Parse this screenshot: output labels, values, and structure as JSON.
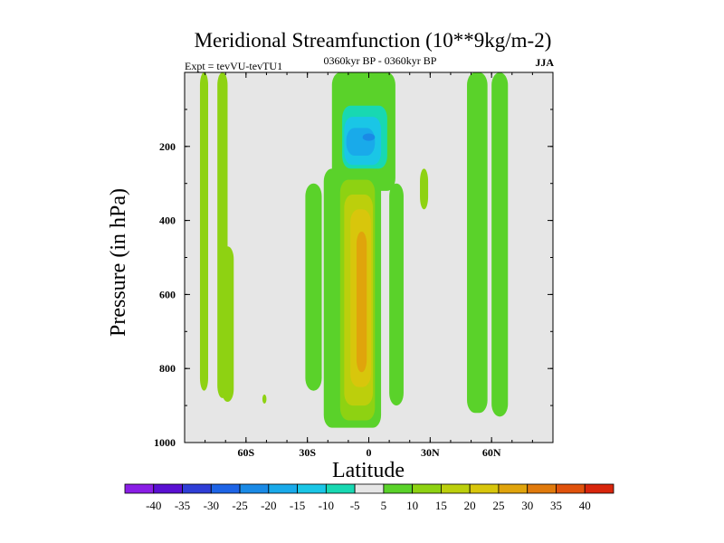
{
  "chart_data": {
    "type": "heatmap",
    "title": "Meridional Streamfunction (10**9kg/m-2)",
    "subtitle_left": "Expt = tevVU-tevTU1",
    "subtitle_center": "0360kyr BP - 0360kyr BP",
    "subtitle_right": "JJA",
    "xlabel": "Latitude",
    "ylabel": "Pressure (in hPa)",
    "xlim": [
      -90,
      90
    ],
    "ylim": [
      1000,
      0
    ],
    "x_ticks": [
      {
        "value": -60,
        "label": "60S"
      },
      {
        "value": -30,
        "label": "30S"
      },
      {
        "value": 0,
        "label": "0"
      },
      {
        "value": 30,
        "label": "30N"
      },
      {
        "value": 60,
        "label": "60N"
      }
    ],
    "y_ticks": [
      {
        "value": 200,
        "label": "200"
      },
      {
        "value": 400,
        "label": "400"
      },
      {
        "value": 600,
        "label": "600"
      },
      {
        "value": 800,
        "label": "800"
      },
      {
        "value": 1000,
        "label": "1000"
      }
    ],
    "background_color": "#e6e6e6",
    "colorbar": {
      "labels": [
        "-40",
        "-35",
        "-30",
        "-25",
        "-20",
        "-15",
        "-10",
        "-5",
        "5",
        "10",
        "15",
        "20",
        "25",
        "30",
        "35",
        "40"
      ],
      "colors": [
        "#8a1ee6",
        "#5a10d2",
        "#2f3ed6",
        "#1e64e6",
        "#1a8ae6",
        "#19aaea",
        "#1ac6e6",
        "#18d8b2",
        "#e6e6e6",
        "#5ad22a",
        "#8ed212",
        "#bccf0c",
        "#d8c60c",
        "#e0a40c",
        "#e07a0c",
        "#e0520c",
        "#d8250c"
      ]
    },
    "regions": [
      {
        "name": "cyan-85S",
        "level": 2,
        "lat": [
          -82.5,
          -78.5
        ],
        "p": [
          0,
          860
        ]
      },
      {
        "name": "cyan-72S",
        "level": 2,
        "lat": [
          -74,
          -69
        ],
        "p": [
          0,
          880
        ]
      },
      {
        "name": "cyan-68S",
        "level": 2,
        "lat": [
          -72,
          -66
        ],
        "p": [
          470,
          890
        ]
      },
      {
        "name": "cyan-50S",
        "level": 2,
        "lat": [
          -52,
          -50
        ],
        "p": [
          870,
          895
        ]
      },
      {
        "name": "teal-28S",
        "level": 1,
        "lat": [
          -31,
          -23
        ],
        "p": [
          300,
          860
        ]
      },
      {
        "name": "teal-upper",
        "level": 1,
        "lat": [
          -18,
          13
        ],
        "p": [
          0,
          320
        ]
      },
      {
        "name": "blue-upper-1",
        "level": -1,
        "lat": [
          -13,
          9
        ],
        "p": [
          90,
          260
        ]
      },
      {
        "name": "blue-upper-2",
        "level": -2,
        "lat": [
          -12,
          6
        ],
        "p": [
          120,
          250
        ]
      },
      {
        "name": "blue-upper-3",
        "level": -3,
        "lat": [
          -11,
          3
        ],
        "p": [
          150,
          225
        ]
      },
      {
        "name": "blue-upper-4",
        "level": -4,
        "lat": [
          -3,
          3
        ],
        "p": [
          165,
          185
        ]
      },
      {
        "name": "teal-hadley",
        "level": 1,
        "lat": [
          -22,
          6
        ],
        "p": [
          260,
          960
        ]
      },
      {
        "name": "green-hadley-1",
        "level": 2,
        "lat": [
          -14,
          3
        ],
        "p": [
          290,
          940
        ]
      },
      {
        "name": "green-hadley-2",
        "level": 3,
        "lat": [
          -12,
          2
        ],
        "p": [
          330,
          900
        ]
      },
      {
        "name": "green-hadley-3",
        "level": 4,
        "lat": [
          -9,
          1
        ],
        "p": [
          370,
          850
        ]
      },
      {
        "name": "green-hadley-4",
        "level": 5,
        "lat": [
          -6,
          -1
        ],
        "p": [
          430,
          810
        ]
      },
      {
        "name": "teal-12N",
        "level": 1,
        "lat": [
          10,
          17
        ],
        "p": [
          300,
          900
        ]
      },
      {
        "name": "cyan-27N",
        "level": 2,
        "lat": [
          25,
          29
        ],
        "p": [
          260,
          370
        ]
      },
      {
        "name": "teal-50N",
        "level": 1,
        "lat": [
          48,
          58
        ],
        "p": [
          0,
          920
        ]
      },
      {
        "name": "teal-64N",
        "level": 1,
        "lat": [
          60,
          68
        ],
        "p": [
          0,
          930
        ]
      }
    ]
  }
}
